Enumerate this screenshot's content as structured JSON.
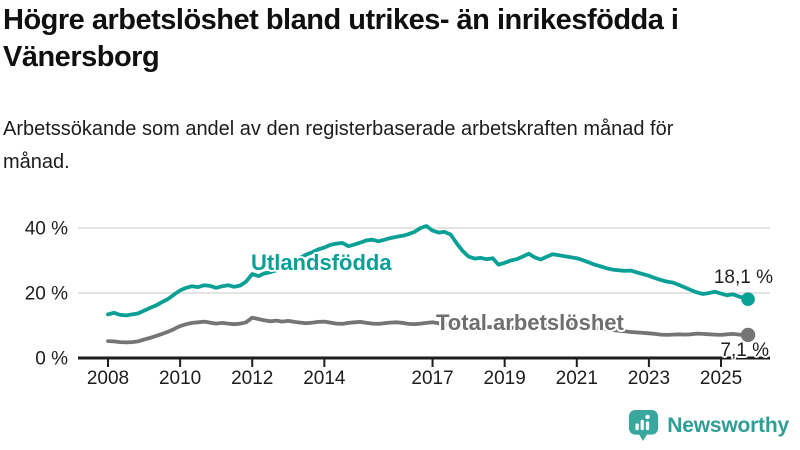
{
  "chart_data": {
    "type": "line",
    "title": "Högre arbetslöshet bland utrikes- än inrikesfödda i Vänersborg",
    "subtitle": "Arbetssökande som andel av den registerbaserade arbetskraften månad för månad.",
    "xlabel": "",
    "ylabel": "",
    "ylim": [
      0,
      44
    ],
    "xlim": [
      2007.2,
      2026.4
    ],
    "grid": "horizontal",
    "legend_position": "inline-labels",
    "yticks": [
      {
        "v": 0,
        "label": "0 %"
      },
      {
        "v": 20,
        "label": "20 %"
      },
      {
        "v": 40,
        "label": "40 %"
      }
    ],
    "xticks": [
      {
        "t": 2008,
        "label": "2008"
      },
      {
        "t": 2010,
        "label": "2010"
      },
      {
        "t": 2012,
        "label": "2012"
      },
      {
        "t": 2014,
        "label": "2014"
      },
      {
        "t": 2017,
        "label": "2017"
      },
      {
        "t": 2019,
        "label": "2019"
      },
      {
        "t": 2021,
        "label": "2021"
      },
      {
        "t": 2023,
        "label": "2023"
      },
      {
        "t": 2025,
        "label": "2025"
      }
    ],
    "series": [
      {
        "name": "Utlandsfödda",
        "color": "#0aa096",
        "end_value": 18.1,
        "end_label": "18,1 %",
        "points": [
          [
            2008.0,
            13.4
          ],
          [
            2008.17,
            13.9
          ],
          [
            2008.33,
            13.3
          ],
          [
            2008.5,
            13.1
          ],
          [
            2008.67,
            13.4
          ],
          [
            2008.83,
            13.7
          ],
          [
            2009.0,
            14.6
          ],
          [
            2009.17,
            15.4
          ],
          [
            2009.33,
            16.2
          ],
          [
            2009.5,
            17.2
          ],
          [
            2009.67,
            18.2
          ],
          [
            2009.83,
            19.5
          ],
          [
            2010.0,
            20.8
          ],
          [
            2010.17,
            21.6
          ],
          [
            2010.33,
            22.1
          ],
          [
            2010.5,
            21.8
          ],
          [
            2010.67,
            22.4
          ],
          [
            2010.83,
            22.2
          ],
          [
            2011.0,
            21.6
          ],
          [
            2011.17,
            22.1
          ],
          [
            2011.33,
            22.4
          ],
          [
            2011.5,
            21.9
          ],
          [
            2011.67,
            22.3
          ],
          [
            2011.83,
            23.5
          ],
          [
            2012.0,
            25.8
          ],
          [
            2012.17,
            25.2
          ],
          [
            2012.33,
            26.0
          ],
          [
            2012.5,
            26.4
          ],
          [
            2012.67,
            27.0
          ],
          [
            2012.83,
            28.0
          ],
          [
            2013.0,
            29.0
          ],
          [
            2013.17,
            29.8
          ],
          [
            2013.33,
            30.8
          ],
          [
            2013.5,
            31.8
          ],
          [
            2013.67,
            32.6
          ],
          [
            2013.83,
            33.4
          ],
          [
            2014.0,
            34.0
          ],
          [
            2014.17,
            34.8
          ],
          [
            2014.33,
            35.2
          ],
          [
            2014.5,
            35.4
          ],
          [
            2014.67,
            34.4
          ],
          [
            2014.83,
            34.9
          ],
          [
            2015.0,
            35.5
          ],
          [
            2015.17,
            36.2
          ],
          [
            2015.33,
            36.4
          ],
          [
            2015.5,
            35.9
          ],
          [
            2015.67,
            36.4
          ],
          [
            2015.83,
            36.9
          ],
          [
            2016.0,
            37.3
          ],
          [
            2016.17,
            37.6
          ],
          [
            2016.33,
            38.1
          ],
          [
            2016.5,
            38.8
          ],
          [
            2016.67,
            40.0
          ],
          [
            2016.83,
            40.6
          ],
          [
            2017.0,
            39.2
          ],
          [
            2017.17,
            38.6
          ],
          [
            2017.33,
            38.8
          ],
          [
            2017.5,
            38.0
          ],
          [
            2017.67,
            35.3
          ],
          [
            2017.83,
            33.0
          ],
          [
            2018.0,
            31.2
          ],
          [
            2018.17,
            30.6
          ],
          [
            2018.33,
            30.8
          ],
          [
            2018.5,
            30.4
          ],
          [
            2018.67,
            30.7
          ],
          [
            2018.83,
            28.7
          ],
          [
            2019.0,
            29.3
          ],
          [
            2019.17,
            30.0
          ],
          [
            2019.33,
            30.4
          ],
          [
            2019.5,
            31.2
          ],
          [
            2019.67,
            32.1
          ],
          [
            2019.83,
            31.0
          ],
          [
            2020.0,
            30.3
          ],
          [
            2020.17,
            31.2
          ],
          [
            2020.33,
            31.9
          ],
          [
            2020.5,
            31.6
          ],
          [
            2020.67,
            31.3
          ],
          [
            2020.83,
            31.0
          ],
          [
            2021.0,
            30.7
          ],
          [
            2021.17,
            30.1
          ],
          [
            2021.33,
            29.4
          ],
          [
            2021.5,
            28.7
          ],
          [
            2021.67,
            28.2
          ],
          [
            2021.83,
            27.6
          ],
          [
            2022.0,
            27.2
          ],
          [
            2022.17,
            27.0
          ],
          [
            2022.33,
            26.8
          ],
          [
            2022.5,
            26.9
          ],
          [
            2022.67,
            26.3
          ],
          [
            2022.83,
            25.8
          ],
          [
            2023.0,
            25.3
          ],
          [
            2023.17,
            24.6
          ],
          [
            2023.33,
            24.0
          ],
          [
            2023.5,
            23.5
          ],
          [
            2023.67,
            23.2
          ],
          [
            2023.83,
            22.5
          ],
          [
            2024.0,
            21.7
          ],
          [
            2024.17,
            20.9
          ],
          [
            2024.33,
            20.2
          ],
          [
            2024.5,
            19.7
          ],
          [
            2024.67,
            20.0
          ],
          [
            2024.83,
            20.4
          ],
          [
            2025.0,
            19.8
          ],
          [
            2025.17,
            19.3
          ],
          [
            2025.33,
            19.6
          ],
          [
            2025.5,
            18.9
          ],
          [
            2025.67,
            18.4
          ],
          [
            2025.75,
            18.1
          ]
        ]
      },
      {
        "name": "Total arbetslöshet",
        "color": "#757575",
        "end_value": 7.1,
        "end_label": "7,1 %",
        "points": [
          [
            2008.0,
            5.2
          ],
          [
            2008.17,
            5.1
          ],
          [
            2008.33,
            4.9
          ],
          [
            2008.5,
            4.8
          ],
          [
            2008.67,
            4.9
          ],
          [
            2008.83,
            5.1
          ],
          [
            2009.0,
            5.7
          ],
          [
            2009.17,
            6.2
          ],
          [
            2009.33,
            6.8
          ],
          [
            2009.5,
            7.4
          ],
          [
            2009.67,
            8.1
          ],
          [
            2009.83,
            8.9
          ],
          [
            2010.0,
            9.8
          ],
          [
            2010.17,
            10.4
          ],
          [
            2010.33,
            10.8
          ],
          [
            2010.5,
            11.0
          ],
          [
            2010.67,
            11.2
          ],
          [
            2010.83,
            10.9
          ],
          [
            2011.0,
            10.6
          ],
          [
            2011.17,
            10.8
          ],
          [
            2011.33,
            10.6
          ],
          [
            2011.5,
            10.4
          ],
          [
            2011.67,
            10.6
          ],
          [
            2011.83,
            11.0
          ],
          [
            2012.0,
            12.4
          ],
          [
            2012.17,
            12.0
          ],
          [
            2012.33,
            11.6
          ],
          [
            2012.5,
            11.3
          ],
          [
            2012.67,
            11.5
          ],
          [
            2012.83,
            11.2
          ],
          [
            2013.0,
            11.4
          ],
          [
            2013.17,
            11.1
          ],
          [
            2013.33,
            10.9
          ],
          [
            2013.5,
            10.7
          ],
          [
            2013.67,
            10.9
          ],
          [
            2013.83,
            11.1
          ],
          [
            2014.0,
            11.2
          ],
          [
            2014.17,
            10.9
          ],
          [
            2014.33,
            10.6
          ],
          [
            2014.5,
            10.5
          ],
          [
            2014.67,
            10.8
          ],
          [
            2014.83,
            11.0
          ],
          [
            2015.0,
            11.1
          ],
          [
            2015.17,
            10.8
          ],
          [
            2015.33,
            10.6
          ],
          [
            2015.5,
            10.5
          ],
          [
            2015.67,
            10.7
          ],
          [
            2015.83,
            10.9
          ],
          [
            2016.0,
            11.0
          ],
          [
            2016.17,
            10.8
          ],
          [
            2016.33,
            10.5
          ],
          [
            2016.5,
            10.4
          ],
          [
            2016.67,
            10.6
          ],
          [
            2016.83,
            10.8
          ],
          [
            2017.0,
            11.0
          ],
          [
            2017.17,
            10.7
          ],
          [
            2017.33,
            10.4
          ],
          [
            2017.5,
            10.2
          ],
          [
            2017.67,
            10.1
          ],
          [
            2017.83,
            10.0
          ],
          [
            2018.0,
            9.9
          ],
          [
            2018.25,
            9.7
          ],
          [
            2018.5,
            9.5
          ],
          [
            2018.75,
            9.6
          ],
          [
            2019.0,
            9.4
          ],
          [
            2019.25,
            9.3
          ],
          [
            2019.5,
            9.5
          ],
          [
            2019.75,
            9.8
          ],
          [
            2020.0,
            10.1
          ],
          [
            2020.25,
            10.5
          ],
          [
            2020.5,
            10.7
          ],
          [
            2020.75,
            10.4
          ],
          [
            2021.0,
            10.1
          ],
          [
            2021.25,
            9.7
          ],
          [
            2021.5,
            9.3
          ],
          [
            2021.75,
            9.0
          ],
          [
            2022.0,
            8.6
          ],
          [
            2022.25,
            8.3
          ],
          [
            2022.5,
            8.0
          ],
          [
            2022.75,
            7.8
          ],
          [
            2023.0,
            7.6
          ],
          [
            2023.17,
            7.4
          ],
          [
            2023.33,
            7.2
          ],
          [
            2023.5,
            7.1
          ],
          [
            2023.67,
            7.2
          ],
          [
            2023.83,
            7.3
          ],
          [
            2024.0,
            7.2
          ],
          [
            2024.17,
            7.3
          ],
          [
            2024.33,
            7.5
          ],
          [
            2024.5,
            7.4
          ],
          [
            2024.67,
            7.3
          ],
          [
            2024.83,
            7.2
          ],
          [
            2025.0,
            7.1
          ],
          [
            2025.17,
            7.3
          ],
          [
            2025.33,
            7.4
          ],
          [
            2025.5,
            7.2
          ],
          [
            2025.67,
            7.1
          ],
          [
            2025.75,
            7.1
          ]
        ]
      }
    ],
    "colors": {
      "grid": "#dcdcdc",
      "axis": "#1d1d1d",
      "tick_label": "#1d1d1d"
    }
  },
  "footer": {
    "brand": "Newsworthy",
    "brand_color": "#2f9e96",
    "logo_icon": "bar-chart-speech-bubble-icon"
  }
}
